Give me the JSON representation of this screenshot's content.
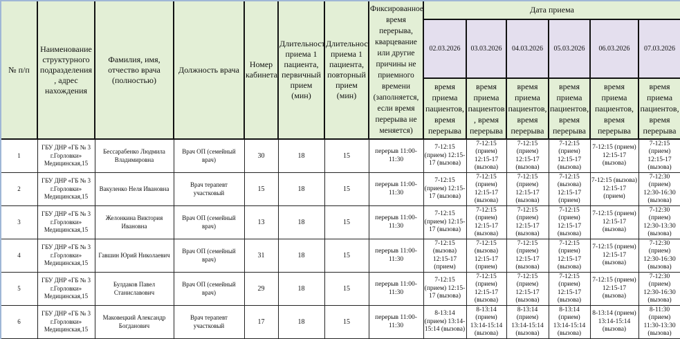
{
  "headers": {
    "num": "№ п/п",
    "org": "Наименование структурного подразделения , адрес нахождения",
    "name": "Фамилия, имя, отчество врача (полностью)",
    "position": "Должность врача",
    "cabinet": "Номер кабинета",
    "dur_primary": "Длительность приема 1 пациента, первичный прием (мин)",
    "dur_repeat": "Длительность приема 1 пациента, повторный прием (мин)",
    "break": "Фиксированное время перерыва, кварцевание или другие причины не приемного времени (заполняется, если время перерыва не меняется)",
    "date_group": "Дата приема",
    "dates": [
      "02.03.2026",
      "03.03.2026",
      "04.03.2026",
      "05.03.2026",
      "06.03.2026",
      "07.03.2026"
    ],
    "date_sub": [
      "время приема пациентов, время перерыва",
      "время приема пациентов , время перерыва",
      "время приема пациентов, время перерыва",
      "время приема пациентов, время перерыва",
      "время приема пациентов, время перерыва",
      "время приема пациентов, время перерыва"
    ]
  },
  "rows": [
    {
      "num": "1",
      "org": "ГБУ ДНР «ГБ № 3 г.Горловки» Медицинская,15",
      "name": "Бессарабенко Людмила Владимировна",
      "position": "Врач ОП (семейный врач)",
      "cabinet": "30",
      "dur_primary": "18",
      "dur_repeat": "15",
      "break": "перерыв 11:00-11:30",
      "schedule": [
        "7-12:15 (прием) 12:15-17 (вызова)",
        "7-12:15 (прием) 12:15-17 (вызова)",
        "7-12:15 (прием) 12:15-17 (вызова)",
        "7-12:15 (прием) 12:15-17 (вызова)",
        "7-12:15 (прием) 12:15-17 (вызова)",
        "7-12:15 (прием) 12:15-17 (вызова)"
      ]
    },
    {
      "num": "2",
      "org": "ГБУ ДНР «ГБ № 3 г.Горловки» Медицинская,15",
      "name": "Вакуленко Неля Ивановна",
      "position": "Врач терапевт участковый",
      "cabinet": "15",
      "dur_primary": "18",
      "dur_repeat": "15",
      "break": "перерыв 11:00-11:30",
      "schedule": [
        "7-12:15 (прием) 12:15-17 (вызова)",
        "7-12:15 (прием) 12:15-17 (вызова)",
        "7-12:15 (прием) 12:15-17 (вызова)",
        "7-12:15 (вызова) 12:15-17 (прием)",
        "7-12:15 (вызова) 12:15-17 (прием)",
        "7-12:30 (прием) 12:30-16:30 (вызова)"
      ]
    },
    {
      "num": "3",
      "org": "ГБУ ДНР «ГБ № 3 г.Горловки» Медицинская,15",
      "name": "Желонкина Виктория Ивановна",
      "position": "Врач ОП (семейный врач)",
      "cabinet": "13",
      "dur_primary": "18",
      "dur_repeat": "15",
      "break": "перерыв 11:00-11:30",
      "schedule": [
        "7-12:15 (прием) 12:15-17 (вызова)",
        "7-12:15 (прием) 12:15-17 (вызова)",
        "7-12:15 (прием) 12:15-17 (вызова)",
        "7-12:15 (прием) 12:15-17 (вызова)",
        "7-12:15 (прием) 12:15-17 (вызова)",
        "7-12:30 (прием) 12:30-13:30 (вызова)"
      ]
    },
    {
      "num": "4",
      "org": "ГБУ ДНР «ГБ № 3 г.Горловки» Медицинская,15",
      "name": "Гавшин Юрий Николаевич",
      "position": "Врач ОП (семейный врач)",
      "cabinet": "31",
      "dur_primary": "18",
      "dur_repeat": "15",
      "break": "перерыв 11:00-11:30",
      "schedule": [
        "7-12:15 (вызова) 12:15-17 (прием)",
        "7-12:15 (вызова) 12:15-17 (прием)",
        "7-12:15 (прием) 12:15-17 (вызова)",
        "7-12:15 (прием) 12:15-17 (вызова)",
        "7-12:15 (прием) 12:15-17 (вызова)",
        "7-12:30 (прием) 12:30-16:30 (вызова)"
      ]
    },
    {
      "num": "5",
      "org": "ГБУ ДНР «ГБ № 3 г.Горловки» Медицинская,15",
      "name": "Булдаков Павел Станиславович",
      "position": "Врач ОП (семейный врач)",
      "cabinet": "29",
      "dur_primary": "18",
      "dur_repeat": "15",
      "break": "перерыв 11:00-11:30",
      "schedule": [
        "7-12:15 (прием) 12:15-17 (вызова)",
        "7-12:15 (прием) 12:15-17 (вызова)",
        "7-12:15 (прием) 12:15-17 (вызова)",
        "7-12:15 (прием) 12:15-17 (вызова)",
        "7-12:15 (прием) 12:15-17 (вызова)",
        "7-12:30 (прием) 12:30-16:30 (вызова)"
      ]
    },
    {
      "num": "6",
      "org": "ГБУ ДНР «ГБ № 3 г.Горловки» Медицинская,15",
      "name": "Маковецкий Александр Богданович",
      "position": "Врач терапевт участковый",
      "cabinet": "17",
      "dur_primary": "18",
      "dur_repeat": "15",
      "break": "перерыв 11:00-11:30",
      "schedule": [
        "8-13:14 (прием) 13:14-15:14 (вызова)",
        "8-13:14 (прием) 13:14-15:14 (вызова)",
        "8-13:14 (прием) 13:14-15:14 (вызова)",
        "8-13:14 (прием) 13:14-15:14 (вызова)",
        "8-13:14 (прием) 13:14-15:14 (вызова)",
        "8-11:30 (прием) 11:30-13:30 (вызова)"
      ]
    }
  ],
  "colors": {
    "header_bg": "#e3efd6",
    "date_bg": "#e4dfee"
  }
}
